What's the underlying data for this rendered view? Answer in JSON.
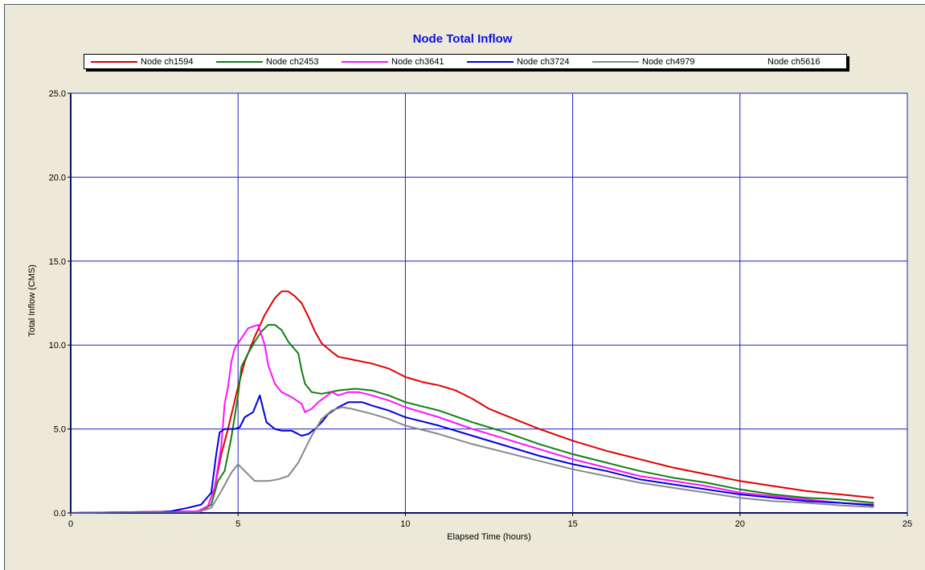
{
  "chart_data": {
    "type": "line",
    "title": "Node Total Inflow",
    "xlabel": "Elapsed Time (hours)",
    "ylabel": "Total Inflow (CMS)",
    "xlim": [
      0,
      25
    ],
    "ylim": [
      0,
      25
    ],
    "xticks": [
      0,
      5,
      10,
      15,
      20,
      25
    ],
    "xtick_labels": [
      "0",
      "5",
      "10",
      "15",
      "20",
      "25"
    ],
    "yticks": [
      0,
      5,
      10,
      15,
      20,
      25
    ],
    "ytick_labels": [
      "0.0",
      "5.0",
      "10.0",
      "15.0",
      "20.0",
      "25.0"
    ],
    "grid": true,
    "legend_position": "top",
    "colors": {
      "title": "#1010e0",
      "grid": "#2020c0",
      "plot_background": "#ffffff",
      "panel_background": "#ece9d8"
    },
    "series": [
      {
        "name": "Node ch1594",
        "color": "#e00000",
        "points": [
          [
            0,
            0
          ],
          [
            3.8,
            0.1
          ],
          [
            4.1,
            0.4
          ],
          [
            4.3,
            1.5
          ],
          [
            4.5,
            3.5
          ],
          [
            4.7,
            5.0
          ],
          [
            5.0,
            7.5
          ],
          [
            5.2,
            9.0
          ],
          [
            5.5,
            10.5
          ],
          [
            5.8,
            11.8
          ],
          [
            6.1,
            12.8
          ],
          [
            6.3,
            13.2
          ],
          [
            6.5,
            13.2
          ],
          [
            6.7,
            12.9
          ],
          [
            6.9,
            12.5
          ],
          [
            7.1,
            11.7
          ],
          [
            7.3,
            10.8
          ],
          [
            7.5,
            10.1
          ],
          [
            7.8,
            9.6
          ],
          [
            8.0,
            9.3
          ],
          [
            8.5,
            9.1
          ],
          [
            9.0,
            8.9
          ],
          [
            9.5,
            8.6
          ],
          [
            10,
            8.1
          ],
          [
            10.5,
            7.8
          ],
          [
            11,
            7.6
          ],
          [
            11.5,
            7.3
          ],
          [
            12,
            6.8
          ],
          [
            12.5,
            6.2
          ],
          [
            13,
            5.8
          ],
          [
            14,
            5.0
          ],
          [
            15,
            4.3
          ],
          [
            16,
            3.7
          ],
          [
            17,
            3.2
          ],
          [
            18,
            2.7
          ],
          [
            19,
            2.3
          ],
          [
            20,
            1.9
          ],
          [
            21,
            1.6
          ],
          [
            22,
            1.3
          ],
          [
            23,
            1.1
          ],
          [
            24,
            0.9
          ]
        ]
      },
      {
        "name": "Node ch2453",
        "color": "#108010",
        "points": [
          [
            0,
            0
          ],
          [
            3.9,
            0.1
          ],
          [
            4.2,
            0.5
          ],
          [
            4.4,
            1.9
          ],
          [
            4.6,
            2.5
          ],
          [
            4.8,
            4.5
          ],
          [
            5.0,
            7.0
          ],
          [
            5.1,
            8.7
          ],
          [
            5.3,
            9.5
          ],
          [
            5.5,
            10.2
          ],
          [
            5.7,
            10.8
          ],
          [
            5.9,
            11.2
          ],
          [
            6.1,
            11.2
          ],
          [
            6.3,
            10.9
          ],
          [
            6.5,
            10.2
          ],
          [
            6.8,
            9.5
          ],
          [
            6.9,
            8.5
          ],
          [
            7.0,
            7.7
          ],
          [
            7.2,
            7.2
          ],
          [
            7.5,
            7.1
          ],
          [
            8.0,
            7.3
          ],
          [
            8.5,
            7.4
          ],
          [
            9.0,
            7.3
          ],
          [
            9.5,
            7.0
          ],
          [
            10,
            6.6
          ],
          [
            11,
            6.1
          ],
          [
            12,
            5.4
          ],
          [
            13,
            4.8
          ],
          [
            14,
            4.1
          ],
          [
            15,
            3.5
          ],
          [
            16,
            3.0
          ],
          [
            17,
            2.5
          ],
          [
            18,
            2.1
          ],
          [
            19,
            1.8
          ],
          [
            20,
            1.4
          ],
          [
            21,
            1.1
          ],
          [
            22,
            0.9
          ],
          [
            23,
            0.8
          ],
          [
            24,
            0.6
          ]
        ]
      },
      {
        "name": "Node ch3641",
        "color": "#ff10ff",
        "points": [
          [
            0,
            0
          ],
          [
            3.8,
            0.1
          ],
          [
            4.1,
            0.4
          ],
          [
            4.3,
            1.5
          ],
          [
            4.5,
            4.0
          ],
          [
            4.6,
            6.5
          ],
          [
            4.7,
            7.5
          ],
          [
            4.8,
            9.0
          ],
          [
            4.9,
            9.8
          ],
          [
            5.1,
            10.4
          ],
          [
            5.3,
            11.0
          ],
          [
            5.6,
            11.2
          ],
          [
            5.8,
            10.0
          ],
          [
            5.9,
            8.8
          ],
          [
            6.1,
            7.7
          ],
          [
            6.3,
            7.2
          ],
          [
            6.6,
            6.9
          ],
          [
            6.9,
            6.5
          ],
          [
            7.0,
            6.0
          ],
          [
            7.2,
            6.2
          ],
          [
            7.4,
            6.6
          ],
          [
            7.6,
            6.9
          ],
          [
            7.8,
            7.2
          ],
          [
            8.0,
            7.0
          ],
          [
            8.3,
            7.2
          ],
          [
            8.6,
            7.2
          ],
          [
            9.0,
            7.0
          ],
          [
            9.5,
            6.7
          ],
          [
            10,
            6.3
          ],
          [
            11,
            5.7
          ],
          [
            12,
            5.0
          ],
          [
            13,
            4.4
          ],
          [
            14,
            3.8
          ],
          [
            15,
            3.2
          ],
          [
            16,
            2.7
          ],
          [
            17,
            2.2
          ],
          [
            18,
            1.9
          ],
          [
            19,
            1.6
          ],
          [
            20,
            1.2
          ],
          [
            21,
            1.0
          ],
          [
            22,
            0.8
          ],
          [
            23,
            0.6
          ],
          [
            24,
            0.5
          ]
        ]
      },
      {
        "name": "Node ch3724",
        "color": "#0000e0",
        "points": [
          [
            0,
            0
          ],
          [
            2.6,
            0.05
          ],
          [
            3.0,
            0.1
          ],
          [
            3.5,
            0.3
          ],
          [
            3.9,
            0.5
          ],
          [
            4.2,
            1.2
          ],
          [
            4.35,
            3.5
          ],
          [
            4.45,
            4.8
          ],
          [
            4.6,
            5.0
          ],
          [
            4.9,
            5.0
          ],
          [
            5.05,
            5.1
          ],
          [
            5.2,
            5.7
          ],
          [
            5.45,
            6.0
          ],
          [
            5.55,
            6.5
          ],
          [
            5.65,
            7.0
          ],
          [
            5.75,
            6.2
          ],
          [
            5.85,
            5.4
          ],
          [
            6.1,
            5.0
          ],
          [
            6.3,
            4.9
          ],
          [
            6.6,
            4.9
          ],
          [
            6.9,
            4.6
          ],
          [
            7.1,
            4.7
          ],
          [
            7.3,
            5.0
          ],
          [
            7.5,
            5.4
          ],
          [
            7.7,
            5.9
          ],
          [
            8.0,
            6.3
          ],
          [
            8.3,
            6.6
          ],
          [
            8.7,
            6.6
          ],
          [
            9.0,
            6.4
          ],
          [
            9.5,
            6.1
          ],
          [
            10,
            5.7
          ],
          [
            11,
            5.2
          ],
          [
            12,
            4.6
          ],
          [
            13,
            4.0
          ],
          [
            14,
            3.4
          ],
          [
            15,
            2.9
          ],
          [
            16,
            2.5
          ],
          [
            17,
            2.0
          ],
          [
            18,
            1.7
          ],
          [
            19,
            1.4
          ],
          [
            20,
            1.1
          ],
          [
            21,
            0.9
          ],
          [
            22,
            0.7
          ],
          [
            23,
            0.6
          ],
          [
            24,
            0.45
          ]
        ]
      },
      {
        "name": "Node ch4979",
        "color": "#888888",
        "points": [
          [
            0,
            0
          ],
          [
            3.8,
            0.05
          ],
          [
            4.2,
            0.3
          ],
          [
            4.5,
            1.3
          ],
          [
            4.8,
            2.4
          ],
          [
            5.0,
            2.9
          ],
          [
            5.2,
            2.5
          ],
          [
            5.5,
            1.9
          ],
          [
            5.9,
            1.9
          ],
          [
            6.2,
            2.0
          ],
          [
            6.5,
            2.2
          ],
          [
            6.8,
            3.0
          ],
          [
            7.0,
            3.8
          ],
          [
            7.2,
            4.6
          ],
          [
            7.5,
            5.6
          ],
          [
            7.8,
            6.1
          ],
          [
            8.1,
            6.3
          ],
          [
            8.4,
            6.2
          ],
          [
            9.0,
            5.9
          ],
          [
            9.5,
            5.6
          ],
          [
            10,
            5.2
          ],
          [
            11,
            4.7
          ],
          [
            12,
            4.1
          ],
          [
            13,
            3.6
          ],
          [
            14,
            3.1
          ],
          [
            15,
            2.6
          ],
          [
            16,
            2.2
          ],
          [
            17,
            1.8
          ],
          [
            18,
            1.5
          ],
          [
            19,
            1.2
          ],
          [
            20,
            0.9
          ],
          [
            21,
            0.7
          ],
          [
            22,
            0.6
          ],
          [
            23,
            0.45
          ],
          [
            24,
            0.35
          ]
        ]
      },
      {
        "name": "Node ch5616",
        "color": "#000000",
        "points": []
      }
    ]
  }
}
